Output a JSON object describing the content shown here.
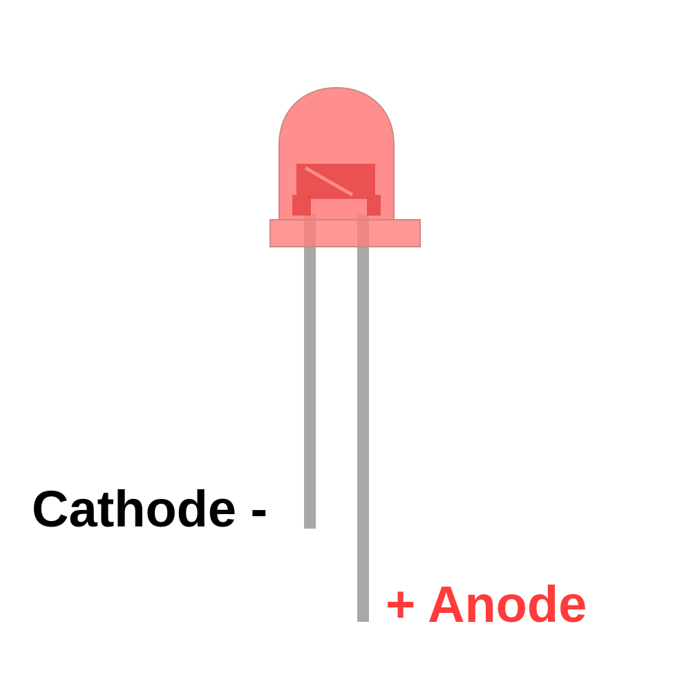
{
  "labels": {
    "cathode": "Cathode -",
    "anode": "+ Anode"
  },
  "colors": {
    "background": "#ffffff",
    "lens": "#ff8080",
    "lens_outline": "#c98a80",
    "die": "#e84a4a",
    "lead": "#a8a8a8",
    "cathode_text": "#000000",
    "anode_text": "#ff3b3b"
  }
}
